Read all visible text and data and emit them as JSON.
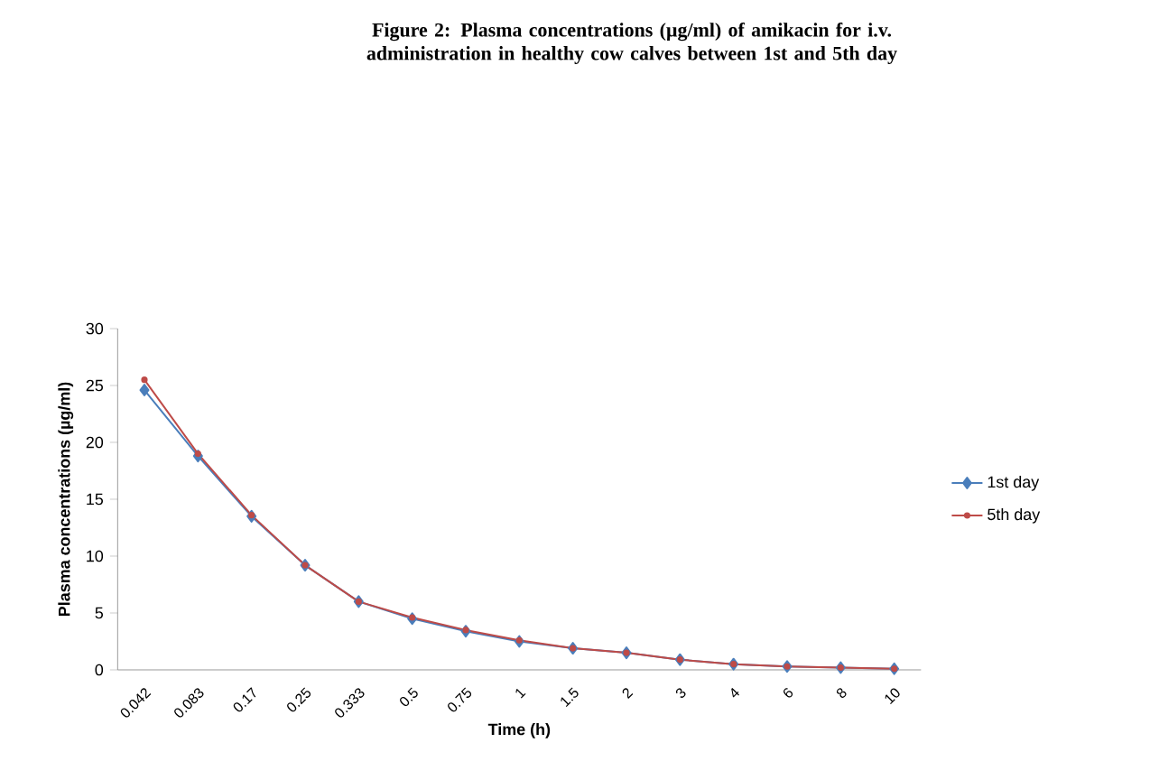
{
  "chart_data": {
    "type": "line",
    "title": "Figure 2: Plasma concentrations (µg/ml) of amikacin for i.v. administration in healthy cow calves between 1st and 5th day",
    "xlabel": "Time (h)",
    "ylabel": "Plasma concentrations (µg/ml)",
    "categories": [
      "0.042",
      "0.083",
      "0.17",
      "0.25",
      "0.333",
      "0.5",
      "0.75",
      "1",
      "1.5",
      "2",
      "3",
      "4",
      "6",
      "8",
      "10"
    ],
    "series": [
      {
        "name": "1st day",
        "color": "#4a7ebb",
        "marker": "diamond",
        "values": [
          24.6,
          18.8,
          13.5,
          9.2,
          6.0,
          4.5,
          3.4,
          2.5,
          1.9,
          1.5,
          0.9,
          0.5,
          0.3,
          0.2,
          0.1
        ]
      },
      {
        "name": "5th day",
        "color": "#be4b48",
        "marker": "circle",
        "values": [
          25.5,
          19.0,
          13.6,
          9.2,
          6.0,
          4.6,
          3.5,
          2.6,
          1.9,
          1.5,
          0.9,
          0.5,
          0.3,
          0.2,
          0.1
        ]
      }
    ],
    "ylim": [
      0,
      30
    ],
    "yticks": [
      0,
      5,
      10,
      15,
      20,
      25,
      30
    ],
    "grid": false,
    "legend": "right"
  }
}
